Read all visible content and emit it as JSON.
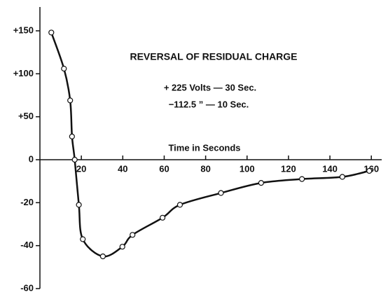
{
  "chart_data": {
    "type": "scatter-line",
    "title": "REVERSAL OF RESIDUAL CHARGE",
    "annotations": [
      "+ 225 Volts — 30 Sec.",
      "−112.5  ”  — 10 Sec."
    ],
    "xlabel": "Time in Seconds",
    "x": [
      5.5,
      11.6,
      14.6,
      15.5,
      16.8,
      18.8,
      20.7,
      30.4,
      39.8,
      44.7,
      59.2,
      67.6,
      87.4,
      106.8,
      126.5,
      146,
      159
    ],
    "values": [
      148,
      106,
      69,
      27,
      0,
      -21,
      -37,
      -45,
      -40.5,
      -35,
      -27,
      -21,
      -15.5,
      -10.8,
      -9,
      -8,
      -5.2
    ],
    "color": "#111111",
    "xlim": [
      0,
      165
    ],
    "xticks": [
      20,
      40,
      60,
      80,
      100,
      120,
      140,
      160
    ],
    "ylim": [
      -60,
      150
    ],
    "yscale": "piecewise",
    "yticks": [
      {
        "value": 150,
        "label": "+150"
      },
      {
        "value": 100,
        "label": "+100"
      },
      {
        "value": 50,
        "label": "+50"
      },
      0,
      -20,
      -40,
      -60
    ]
  }
}
